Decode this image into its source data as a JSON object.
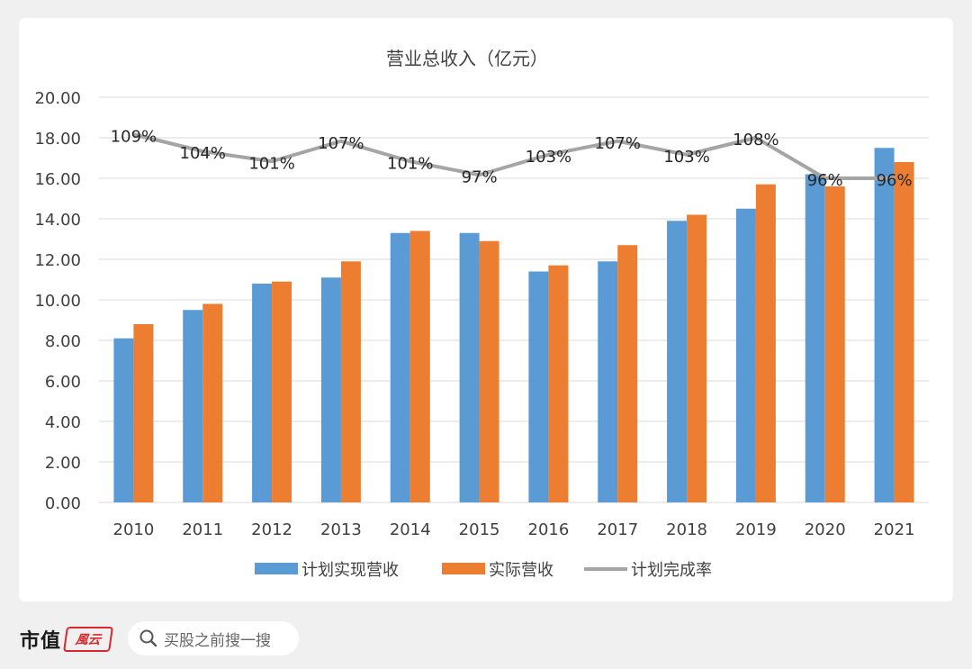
{
  "chart_data": {
    "type": "bar",
    "title": "营业总收入（亿元）",
    "categories": [
      "2010",
      "2011",
      "2012",
      "2013",
      "2014",
      "2015",
      "2016",
      "2017",
      "2018",
      "2019",
      "2020",
      "2021"
    ],
    "series": [
      {
        "name": "计划实现营收",
        "kind": "bar",
        "color": "#5b9bd5",
        "values": [
          8.1,
          9.5,
          10.8,
          11.1,
          13.3,
          13.3,
          11.4,
          11.9,
          13.9,
          14.5,
          16.2,
          17.5
        ]
      },
      {
        "name": "实际营收",
        "kind": "bar",
        "color": "#ed7d31",
        "values": [
          8.8,
          9.8,
          10.9,
          11.9,
          13.4,
          12.9,
          11.7,
          12.7,
          14.2,
          15.7,
          15.6,
          16.8
        ]
      },
      {
        "name": "计划完成率",
        "kind": "line",
        "color": "#a5a5a5",
        "values": [
          109,
          104,
          101,
          107,
          101,
          97,
          103,
          107,
          103,
          108,
          96,
          96
        ],
        "labels": [
          "109%",
          "104%",
          "101%",
          "107%",
          "101%",
          "97%",
          "103%",
          "107%",
          "103%",
          "108%",
          "96%",
          "96%"
        ]
      }
    ],
    "ylim": [
      0,
      20
    ],
    "yticks": [
      "0.00",
      "2.00",
      "4.00",
      "6.00",
      "8.00",
      "10.00",
      "12.00",
      "14.00",
      "16.00",
      "18.00",
      "20.00"
    ],
    "grid": true,
    "legend_position": "bottom"
  },
  "footer": {
    "brand": "市值",
    "brand_stamp": "風云",
    "search_placeholder": "买股之前搜一搜",
    "search_icon": "search-icon"
  }
}
